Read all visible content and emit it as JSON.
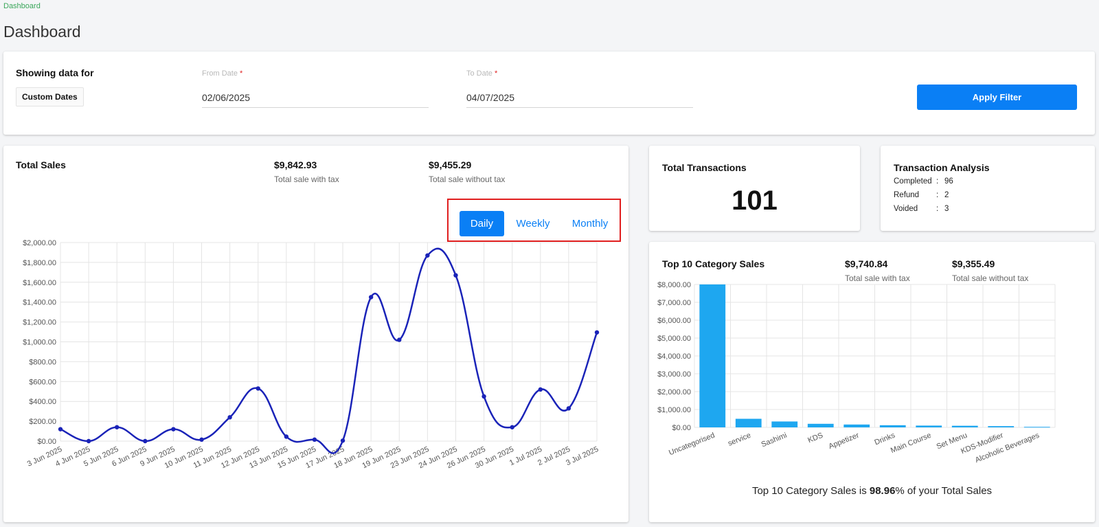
{
  "breadcrumb": "Dashboard",
  "page_title": "Dashboard",
  "filter": {
    "heading": "Showing data for",
    "range_option": "Custom Dates",
    "from_label": "From Date",
    "from_value": "02/06/2025",
    "to_label": "To Date",
    "to_value": "04/07/2025",
    "required_mark": "*",
    "apply_label": "Apply Filter"
  },
  "total_sales": {
    "title": "Total Sales",
    "with_tax_value": "$9,842.93",
    "with_tax_label": "Total sale with tax",
    "without_tax_value": "$9,455.29",
    "without_tax_label": "Total sale without tax",
    "periods": [
      "Daily",
      "Weekly",
      "Monthly"
    ],
    "active_period": "Daily"
  },
  "total_transactions": {
    "title": "Total Transactions",
    "count": "101"
  },
  "transaction_analysis": {
    "title": "Transaction Analysis",
    "rows": [
      {
        "label": "Completed",
        "value": "96"
      },
      {
        "label": "Refund",
        "value": "2"
      },
      {
        "label": "Voided",
        "value": "3"
      }
    ]
  },
  "category_sales": {
    "title": "Top 10 Category Sales",
    "with_tax_value": "$9,740.84",
    "with_tax_label": "Total sale with tax",
    "without_tax_value": "$9,355.49",
    "without_tax_label": "Total sale without tax",
    "footnote_prefix": "Top 10 Category Sales is ",
    "footnote_pct": "98.96",
    "footnote_suffix": "% of your Total Sales"
  },
  "colors": {
    "accent": "#0a7ff5",
    "line_series": "#1a23b8",
    "bar_series": "#1ea7f0",
    "highlight_border": "#e01e1e"
  },
  "chart_data": [
    {
      "type": "line",
      "x": [
        "3 Jun 2025",
        "4 Jun 2025",
        "5 Jun 2025",
        "6 Jun 2025",
        "9 Jun 2025",
        "10 Jun 2025",
        "11 Jun 2025",
        "12 Jun 2025",
        "13 Jun 2025",
        "15 Jun 2025",
        "17 Jun 2025",
        "18 Jun 2025",
        "19 Jun 2025",
        "23 Jun 2025",
        "24 Jun 2025",
        "26 Jun 2025",
        "30 Jun 2025",
        "1 Jul 2025",
        "2 Jul 2025",
        "3 Jul 2025"
      ],
      "values": [
        120,
        0,
        140,
        0,
        120,
        15,
        240,
        530,
        45,
        15,
        5,
        1450,
        1020,
        1870,
        1670,
        450,
        140,
        520,
        330,
        1095
      ],
      "ylim": [
        0,
        2000
      ],
      "yticks": [
        0,
        200,
        400,
        600,
        800,
        1000,
        1200,
        1400,
        1600,
        1800,
        2000
      ],
      "ytick_labels": [
        "$0.00",
        "$200.00",
        "$400.00",
        "$600.00",
        "$800.00",
        "$1,000.00",
        "$1,200.00",
        "$1,400.00",
        "$1,600.00",
        "$1,800.00",
        "$2,000.00"
      ],
      "grid": true,
      "title": "",
      "xlabel": "",
      "ylabel": ""
    },
    {
      "type": "bar",
      "categories": [
        "Uncategorised",
        "service",
        "Sashimi",
        "KDS",
        "Appetizer",
        "Drinks",
        "Main Course",
        "Set Menu",
        "KDS-Modifier",
        "Alcoholic Beverages"
      ],
      "values": [
        8000,
        480,
        330,
        200,
        160,
        120,
        100,
        90,
        70,
        30
      ],
      "ylim": [
        0,
        8000
      ],
      "yticks": [
        0,
        1000,
        2000,
        3000,
        4000,
        5000,
        6000,
        7000,
        8000
      ],
      "ytick_labels": [
        "$0.00",
        "$1,000.00",
        "$2,000.00",
        "$3,000.00",
        "$4,000.00",
        "$5,000.00",
        "$6,000.00",
        "$7,000.00",
        "$8,000.00"
      ],
      "grid": true,
      "title": "",
      "xlabel": "",
      "ylabel": ""
    }
  ]
}
